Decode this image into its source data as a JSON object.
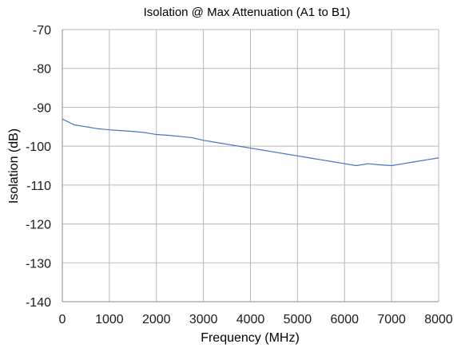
{
  "chart_data": {
    "type": "line",
    "title": "Isolation @ Max Attenuation (A1 to B1)",
    "xlabel": "Frequency (MHz)",
    "ylabel": "Isolation (dB)",
    "xlim": [
      0,
      8000
    ],
    "ylim": [
      -140,
      -70
    ],
    "xticks": [
      0,
      1000,
      2000,
      3000,
      4000,
      5000,
      6000,
      7000,
      8000
    ],
    "yticks": [
      -70,
      -80,
      -90,
      -100,
      -110,
      -120,
      -130,
      -140
    ],
    "grid": true,
    "legend": "none",
    "series": [
      {
        "color": "#4472C4",
        "x": [
          0,
          250,
          500,
          750,
          1000,
          1250,
          1500,
          1750,
          2000,
          2250,
          2500,
          2750,
          3000,
          3250,
          3500,
          3750,
          4000,
          4250,
          4500,
          4750,
          5000,
          5250,
          5500,
          5750,
          6000,
          6250,
          6500,
          6750,
          7000,
          7250,
          7500,
          7750,
          8000
        ],
        "y": [
          -93,
          -94.5,
          -95,
          -95.5,
          -95.8,
          -96,
          -96.2,
          -96.5,
          -97,
          -97.2,
          -97.5,
          -97.8,
          -98.5,
          -99,
          -99.5,
          -100,
          -100.5,
          -101,
          -101.5,
          -102,
          -102.5,
          -103,
          -103.5,
          -104,
          -104.5,
          -105,
          -104.5,
          -104.8,
          -105,
          -104.5,
          -104,
          -103.5,
          -103
        ]
      }
    ]
  },
  "colors": {
    "series": "#4472C4",
    "grid": "#b9b9b9",
    "axis": "#8c8c8c"
  }
}
